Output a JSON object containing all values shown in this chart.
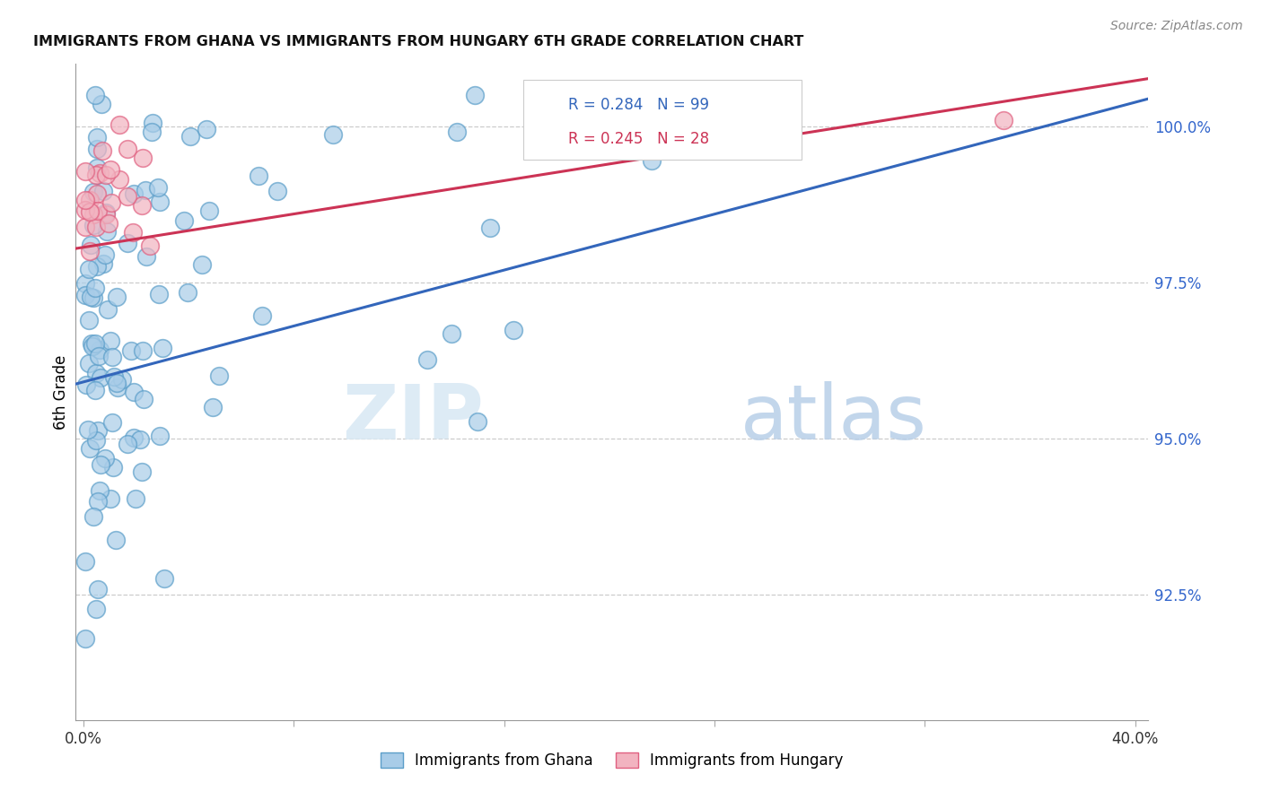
{
  "title": "IMMIGRANTS FROM GHANA VS IMMIGRANTS FROM HUNGARY 6TH GRADE CORRELATION CHART",
  "source": "Source: ZipAtlas.com",
  "ylabel": "6th Grade",
  "ylabel_ticks": [
    "92.5%",
    "95.0%",
    "97.5%",
    "100.0%"
  ],
  "ylabel_values": [
    92.5,
    95.0,
    97.5,
    100.0
  ],
  "xlim": [
    0.0,
    40.0
  ],
  "ylim": [
    90.5,
    101.0
  ],
  "ghana_color": "#a8cce8",
  "hungary_color": "#f2b3c0",
  "ghana_edge": "#5b9ec9",
  "hungary_edge": "#e06080",
  "trend_ghana_color": "#3366bb",
  "trend_hungary_color": "#cc3355",
  "ghana_R": 0.284,
  "ghana_N": 99,
  "hungary_R": 0.245,
  "hungary_N": 28,
  "legend_label_ghana": "Immigrants from Ghana",
  "legend_label_hungary": "Immigrants from Hungary",
  "watermark_zip": "ZIP",
  "watermark_atlas": "atlas"
}
